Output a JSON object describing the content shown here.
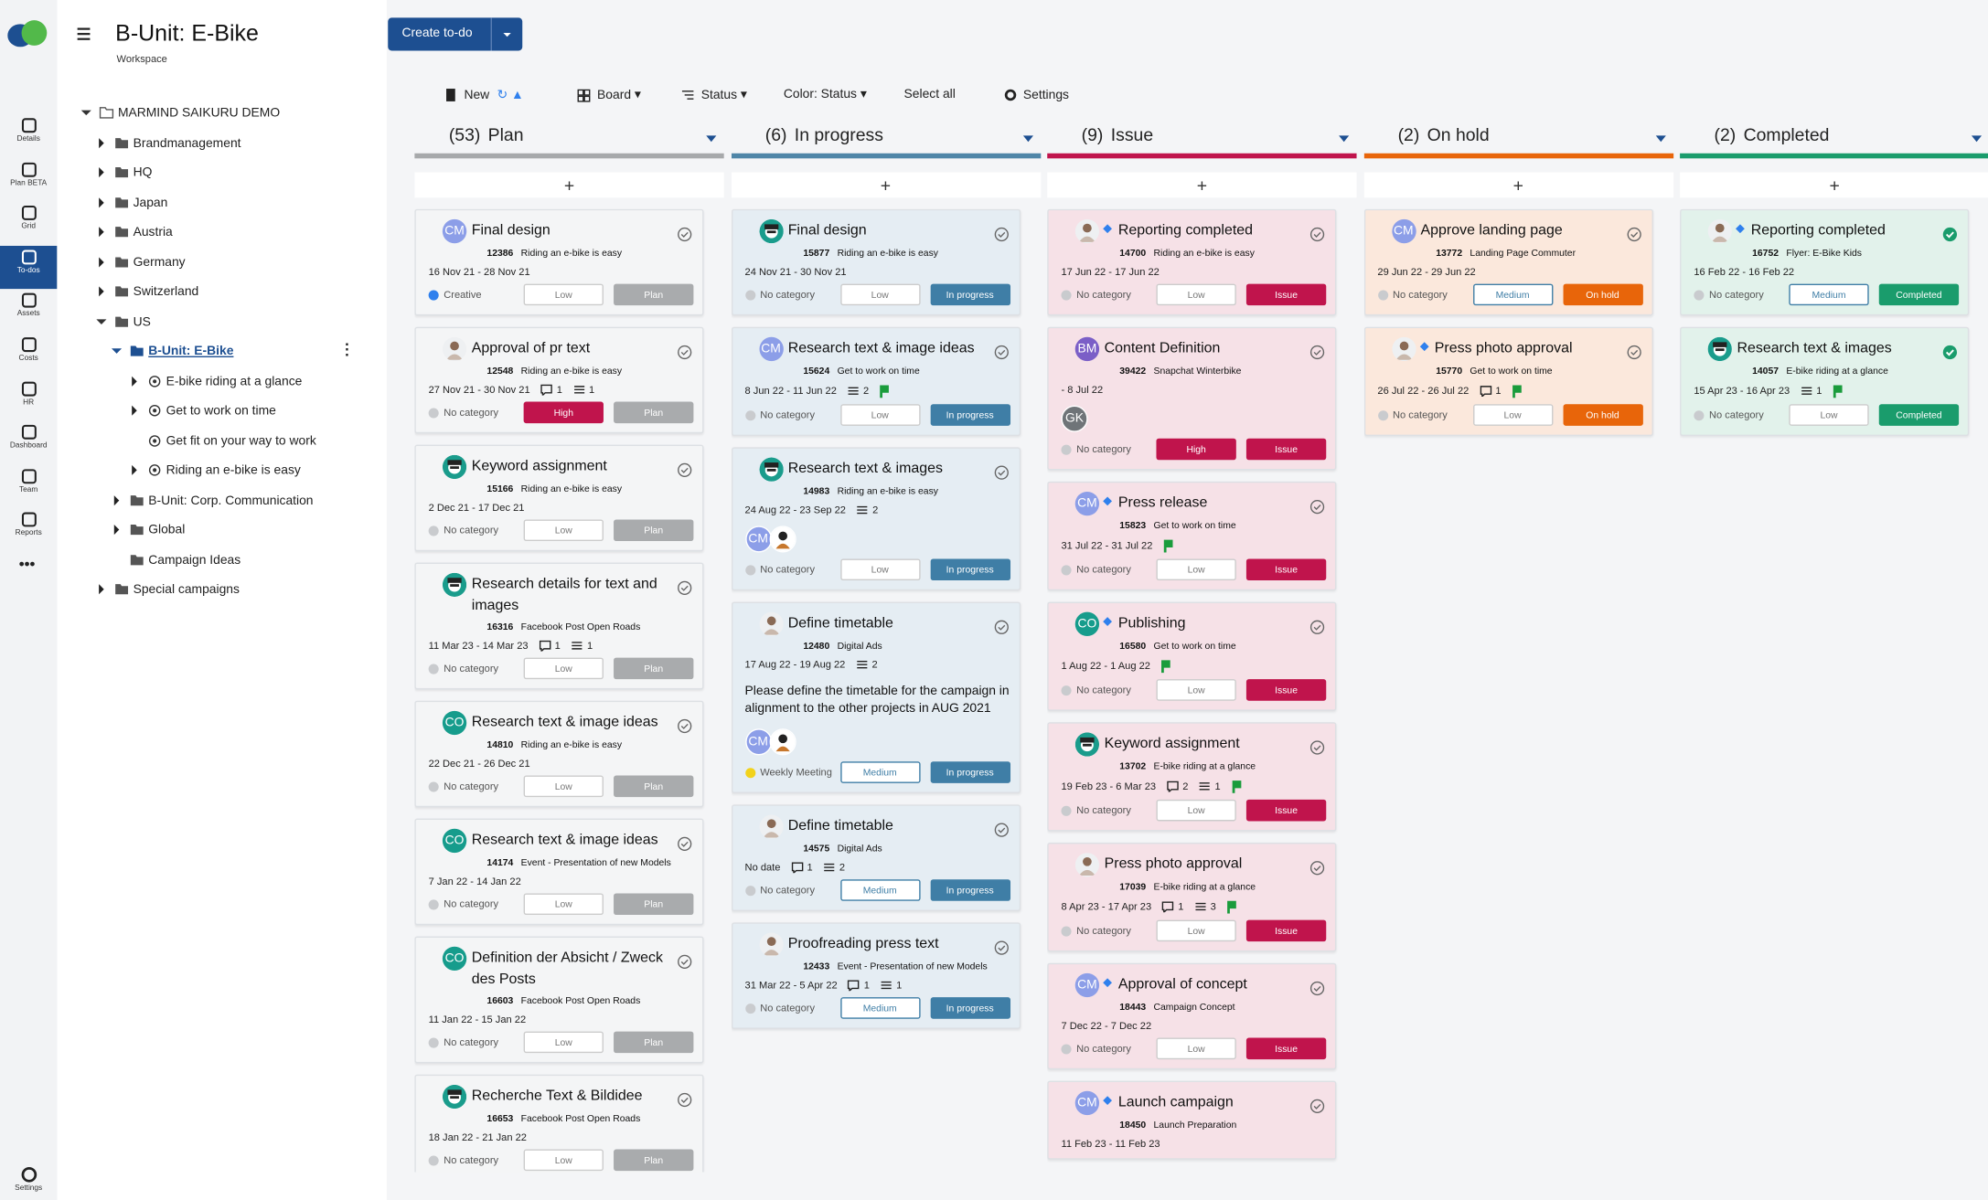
{
  "rail": [
    "Details",
    "Plan BETA",
    "Grid",
    "To-dos",
    "Assets",
    "Costs",
    "HR",
    "Dashboard",
    "Team",
    "Reports"
  ],
  "rail_active": 3,
  "rail_bottom": "Settings",
  "header": {
    "title": "B-Unit: E-Bike",
    "subtitle": "Workspace",
    "create": "Create to-do"
  },
  "tree": [
    {
      "label": "MARMIND SAIKURU DEMO",
      "level": 0,
      "expand": "open",
      "kind": "root"
    },
    {
      "label": "Brandmanagement",
      "level": 1,
      "expand": "closed",
      "kind": "folder"
    },
    {
      "label": "HQ",
      "level": 1,
      "expand": "closed",
      "kind": "folder"
    },
    {
      "label": "Japan",
      "level": 1,
      "expand": "closed",
      "kind": "folder"
    },
    {
      "label": "Austria",
      "level": 1,
      "expand": "closed",
      "kind": "folder"
    },
    {
      "label": "Germany",
      "level": 1,
      "expand": "closed",
      "kind": "folder"
    },
    {
      "label": "Switzerland",
      "level": 1,
      "expand": "closed",
      "kind": "folder"
    },
    {
      "label": "US",
      "level": 1,
      "expand": "open",
      "kind": "folder"
    },
    {
      "label": "B-Unit: E-Bike",
      "level": 2,
      "expand": "open",
      "kind": "folder",
      "selected": true
    },
    {
      "label": "E-bike riding at a glance",
      "level": 3,
      "expand": "closed",
      "kind": "target"
    },
    {
      "label": "Get to work on time",
      "level": 3,
      "expand": "closed",
      "kind": "target"
    },
    {
      "label": "Get fit on your way to work",
      "level": 3,
      "expand": "none",
      "kind": "target"
    },
    {
      "label": "Riding an e-bike is easy",
      "level": 3,
      "expand": "closed",
      "kind": "target"
    },
    {
      "label": "B-Unit: Corp. Communication",
      "level": 2,
      "expand": "closed",
      "kind": "folder"
    },
    {
      "label": "Global",
      "level": 2,
      "expand": "closed",
      "kind": "folder"
    },
    {
      "label": "Campaign Ideas",
      "level": 2,
      "expand": "none",
      "kind": "folder"
    },
    {
      "label": "Special campaigns",
      "level": 1,
      "expand": "closed",
      "kind": "folder"
    }
  ],
  "toolbar": {
    "new": "New",
    "view": "Board",
    "group": "Status",
    "color": "Color: Status",
    "select": "Select all",
    "settings": "Settings"
  },
  "board": {
    "columns": [
      {
        "count": "(53)",
        "name": "Plan",
        "color": "#a7a9ab",
        "tint": "#f4f5f6",
        "status_color": "#a9abad",
        "cards": [
          {
            "title": "Final design",
            "avatar": "CM",
            "avatar_kind": "initials",
            "avatar_color": "#8c9ee8",
            "id": 12386,
            "project": "Riding an e-bike is easy",
            "dates": "16 Nov 21 - 28 Nov 21",
            "category": "Creative",
            "category_color": "#2f80ed",
            "priority": "Low",
            "status": "Plan"
          },
          {
            "title": "Approval of pr text",
            "avatar_kind": "photo",
            "id": 12548,
            "project": "Riding an e-bike is easy",
            "dates": "27 Nov 21 - 30 Nov 21",
            "comments": 1,
            "subtasks": 1,
            "category": "No category",
            "priority": "High",
            "status": "Plan"
          },
          {
            "title": "Keyword assignment",
            "avatar_kind": "icon",
            "id": 15166,
            "project": "Riding an e-bike is easy",
            "dates": "2 Dec 21 - 17 Dec 21",
            "category": "No category",
            "priority": "Low",
            "status": "Plan"
          },
          {
            "title": "Research details for text and images",
            "avatar_kind": "icon",
            "id": 16316,
            "project": "Facebook Post Open Roads",
            "dates": "11 Mar 23 - 14 Mar 23",
            "comments": 1,
            "subtasks": 1,
            "category": "No category",
            "priority": "Low",
            "status": "Plan"
          },
          {
            "title": "Research text & image ideas",
            "avatar": "CO",
            "avatar_kind": "initials",
            "avatar_color": "#169c8c",
            "id": 14810,
            "project": "Riding an e-bike is easy",
            "dates": "22 Dec 21 - 26 Dec 21",
            "category": "No category",
            "priority": "Low",
            "status": "Plan"
          },
          {
            "title": "Research text & image ideas",
            "avatar": "CO",
            "avatar_kind": "initials",
            "avatar_color": "#169c8c",
            "id": 14174,
            "project": "Event - Presentation of new Models",
            "dates": "7 Jan 22 - 14 Jan 22",
            "category": "No category",
            "priority": "Low",
            "status": "Plan"
          },
          {
            "title": "Definition der Absicht / Zweck des Posts",
            "avatar": "CO",
            "avatar_kind": "initials",
            "avatar_color": "#169c8c",
            "id": 16603,
            "project": "Facebook Post Open Roads",
            "dates": "11 Jan 22 - 15 Jan 22",
            "category": "No category",
            "priority": "Low",
            "status": "Plan"
          },
          {
            "title": "Recherche Text & Bildidee",
            "avatar_kind": "icon",
            "id": 16653,
            "project": "Facebook Post Open Roads",
            "dates": "18 Jan 22 - 21 Jan 22",
            "category": "No category",
            "priority": "Low",
            "status": "Plan"
          }
        ]
      },
      {
        "count": "(6)",
        "name": "In progress",
        "color": "#4f86a8",
        "tint": "#e5edf3",
        "status_color": "#3f7ea6",
        "cards": [
          {
            "title": "Final design",
            "avatar_kind": "icon",
            "id": 15877,
            "project": "Riding an e-bike is easy",
            "dates": "24 Nov 21 - 30 Nov 21",
            "category": "No category",
            "priority": "Low",
            "status": "In progress"
          },
          {
            "title": "Research text & image ideas",
            "avatar": "CM",
            "avatar_kind": "initials",
            "avatar_color": "#8c9ee8",
            "id": 15624,
            "project": "Get to work on time",
            "dates": "8 Jun 22 - 11 Jun 22",
            "subtasks": 2,
            "flag": true,
            "category": "No category",
            "priority": "Low",
            "status": "In progress"
          },
          {
            "title": "Research text & images",
            "avatar_kind": "icon",
            "id": 14983,
            "project": "Riding an e-bike is easy",
            "dates": "24 Aug 22 - 23 Sep 22",
            "subtasks": 2,
            "assignees": [
              {
                "kind": "initials",
                "text": "CM",
                "color": "#8c9ee8"
              },
              {
                "kind": "person"
              }
            ],
            "category": "No category",
            "priority": "Low",
            "status": "In progress"
          },
          {
            "title": "Define timetable",
            "avatar_kind": "photo",
            "id": 12480,
            "project": "Digital Ads",
            "dates": "17 Aug 22 - 19 Aug 22",
            "subtasks": 2,
            "description": "Please define the timetable for the campaign in alignment to the other projects in AUG 2021",
            "assignees": [
              {
                "kind": "initials",
                "text": "CM",
                "color": "#8c9ee8"
              },
              {
                "kind": "person"
              }
            ],
            "category": "Weekly Meeting",
            "category_color": "#f2d21b",
            "priority": "Medium",
            "status": "In progress"
          },
          {
            "title": "Define timetable",
            "avatar_kind": "photo",
            "id": 14575,
            "project": "Digital Ads",
            "dates": "No date",
            "comments": 1,
            "subtasks": 2,
            "category": "No category",
            "priority": "Medium",
            "status": "In progress"
          },
          {
            "title": "Proofreading press text",
            "avatar_kind": "photo",
            "id": 12433,
            "project": "Event - Presentation of new Models",
            "dates": "31 Mar 22 - 5 Apr 22",
            "comments": 1,
            "subtasks": 1,
            "category": "No category",
            "priority": "Medium",
            "status": "In progress"
          }
        ]
      },
      {
        "count": "(9)",
        "name": "Issue",
        "color": "#c0144c",
        "tint": "#f6e1e7",
        "status_color": "#c0144c",
        "cards": [
          {
            "title": "Reporting completed",
            "avatar_kind": "photo",
            "milestone": true,
            "id": 14700,
            "project": "Riding an e-bike is easy",
            "dates": "17 Jun 22 - 17 Jun 22",
            "category": "No category",
            "priority": "Low",
            "status": "Issue"
          },
          {
            "title": "Content Definition",
            "avatar": "BM",
            "avatar_kind": "initials",
            "avatar_color": "#7b5fc7",
            "id": 39422,
            "project": "Snapchat Winterbike",
            "dates": "- 8 Jul 22",
            "assignees": [
              {
                "kind": "initials",
                "text": "GK",
                "color": "#6f7478"
              }
            ],
            "category": "No category",
            "priority": "High",
            "status": "Issue"
          },
          {
            "title": "Press release",
            "avatar": "CM",
            "avatar_kind": "initials",
            "avatar_color": "#8c9ee8",
            "milestone": true,
            "id": 15823,
            "project": "Get to work on time",
            "dates": "31 Jul 22 - 31 Jul 22",
            "flag": true,
            "category": "No category",
            "priority": "Low",
            "status": "Issue"
          },
          {
            "title": "Publishing",
            "avatar": "CO",
            "avatar_kind": "initials",
            "avatar_color": "#169c8c",
            "milestone": true,
            "id": 16580,
            "project": "Get to work on time",
            "dates": "1 Aug 22 - 1 Aug 22",
            "flag": true,
            "category": "No category",
            "priority": "Low",
            "status": "Issue"
          },
          {
            "title": "Keyword assignment",
            "avatar_kind": "icon",
            "id": 13702,
            "project": "E-bike riding at a glance",
            "dates": "19 Feb 23 - 6 Mar 23",
            "comments": 2,
            "subtasks": 1,
            "flag": true,
            "category": "No category",
            "priority": "Low",
            "status": "Issue"
          },
          {
            "title": "Press photo approval",
            "avatar_kind": "photo",
            "id": 17039,
            "project": "E-bike riding at a glance",
            "dates": "8 Apr 23 - 17 Apr 23",
            "comments": 1,
            "subtasks": 3,
            "flag": true,
            "category": "No category",
            "priority": "Low",
            "status": "Issue"
          },
          {
            "title": "Approval of concept",
            "avatar": "CM",
            "avatar_kind": "initials",
            "avatar_color": "#8c9ee8",
            "milestone": true,
            "id": 18443,
            "project": "Campaign Concept",
            "dates": "7 Dec 22 - 7 Dec 22",
            "category": "No category",
            "priority": "Low",
            "status": "Issue"
          },
          {
            "title": "Launch campaign",
            "avatar": "CM",
            "avatar_kind": "initials",
            "avatar_color": "#8c9ee8",
            "milestone": true,
            "id": 18450,
            "project": "Launch Preparation",
            "dates": "11 Feb 23 - 11 Feb 23"
          }
        ]
      },
      {
        "count": "(2)",
        "name": "On hold",
        "color": "#e8650a",
        "tint": "#fbe8dc",
        "status_color": "#e8650a",
        "cards": [
          {
            "title": "Approve landing page",
            "avatar": "CM",
            "avatar_kind": "initials",
            "avatar_color": "#8c9ee8",
            "id": 13772,
            "project": "Landing Page Commuter",
            "dates": "29 Jun 22 - 29 Jun 22",
            "category": "No category",
            "priority": "Medium",
            "status": "On hold"
          },
          {
            "title": "Press photo approval",
            "avatar_kind": "photo",
            "milestone": true,
            "id": 15770,
            "project": "Get to work on time",
            "dates": "26 Jul 22 - 26 Jul 22",
            "comments": 1,
            "flag": true,
            "category": "No category",
            "priority": "Low",
            "status": "On hold"
          }
        ]
      },
      {
        "count": "(2)",
        "name": "Completed",
        "color": "#1a9c6c",
        "tint": "#e2f2eb",
        "status_color": "#1a9c6c",
        "cards": [
          {
            "title": "Reporting completed",
            "avatar_kind": "photo",
            "milestone": true,
            "done": true,
            "id": 16752,
            "project": "Flyer: E-Bike Kids",
            "dates": "16 Feb 22 - 16 Feb 22",
            "category": "No category",
            "priority": "Medium",
            "status": "Completed"
          },
          {
            "title": "Research text & images",
            "avatar_kind": "icon",
            "done": true,
            "id": 14057,
            "project": "E-bike riding at a glance",
            "dates": "15 Apr 23 - 16 Apr 23",
            "subtasks": 1,
            "flag": true,
            "category": "No category",
            "priority": "Low",
            "status": "Completed"
          }
        ]
      }
    ]
  }
}
